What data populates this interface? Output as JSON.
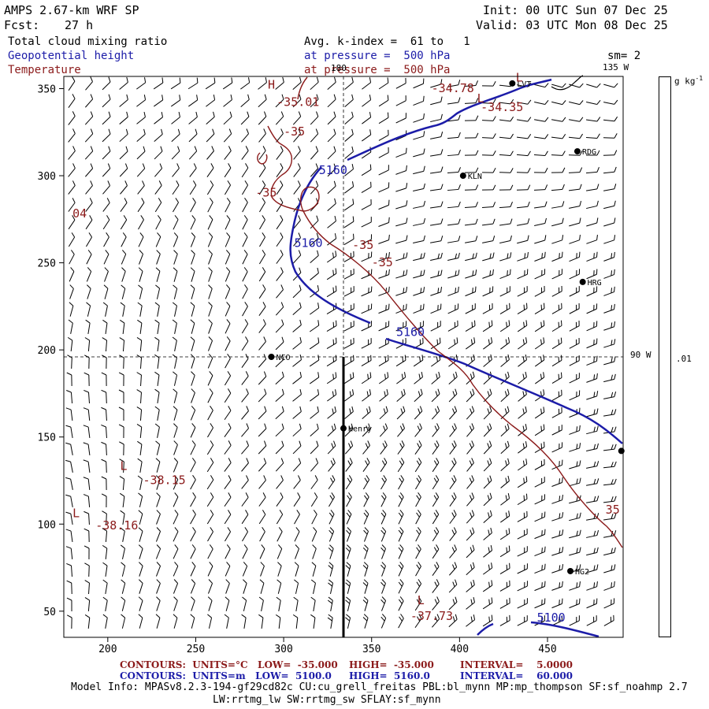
{
  "header": {
    "model_title": "AMPS 2.67-km WRF SP",
    "init": "Init: 00 UTC Sun 07 Dec 25",
    "fcst_label": "Fcst:",
    "fcst_value": "27 h",
    "valid": "Valid: 03 UTC Mon 08 Dec 25"
  },
  "fields": {
    "cloud": "Total cloud mixing ratio",
    "height": "Geopotential height",
    "temperature": "Temperature",
    "avg_line": "Avg. k-index =  61 to   1",
    "pressure_height": "at pressure =  500 hPa",
    "pressure_temp": "at pressure =  500 hPa",
    "smoothing": "sm= 2",
    "lon_135": "135 W",
    "lon_90": "90 W",
    "lon_180": "180"
  },
  "colorbar": {
    "units": "g kg",
    "units_sup": "-1",
    "tick_label": ".01"
  },
  "colors": {
    "height_contour": "#1c1ca8",
    "temperature_contour": "#8b1a1a",
    "barbs": "#000000"
  },
  "chart_data": {
    "type": "contour map",
    "x_ticks": [
      200,
      250,
      300,
      350,
      400,
      450
    ],
    "y_ticks": [
      50,
      100,
      150,
      200,
      250,
      300,
      350
    ],
    "xlim": [
      175,
      493
    ],
    "ylim": [
      35,
      357
    ],
    "stations": [
      {
        "name": "KLN",
        "x": 402,
        "y": 300
      },
      {
        "name": "RDG",
        "x": 467,
        "y": 314
      },
      {
        "name": "HRG",
        "x": 470,
        "y": 239
      },
      {
        "name": "NCO",
        "x": 293,
        "y": 196
      },
      {
        "name": "Henry",
        "x": 334,
        "y": 155
      },
      {
        "name": "HG2",
        "x": 463,
        "y": 73
      },
      {
        "name": "LVT",
        "x": 430,
        "y": 353
      },
      {
        "name": "",
        "x": 492,
        "y": 142
      }
    ],
    "height_contour_labels": [
      {
        "text": "5160",
        "x": 320,
        "y": 301
      },
      {
        "text": "5160",
        "x": 306,
        "y": 259
      },
      {
        "text": "5160",
        "x": 364,
        "y": 208
      },
      {
        "text": "5100",
        "x": 444,
        "y": 44
      }
    ],
    "temperature_labels": [
      {
        "text": "-35.01",
        "x": 296,
        "y": 340
      },
      {
        "text": "-34.78",
        "x": 384,
        "y": 348
      },
      {
        "text": "-34.35",
        "x": 412,
        "y": 337
      },
      {
        "text": "-35",
        "x": 300,
        "y": 323
      },
      {
        "text": "-35",
        "x": 284,
        "y": 288
      },
      {
        "text": "-35",
        "x": 339,
        "y": 258
      },
      {
        "text": "-35",
        "x": 350,
        "y": 248
      },
      {
        "text": "-38.15",
        "x": 220,
        "y": 123
      },
      {
        "text": "-38.16",
        "x": 193,
        "y": 97
      },
      {
        "text": "-37.73",
        "x": 372,
        "y": 45
      },
      {
        "text": "35",
        "x": 483,
        "y": 106
      },
      {
        "text": "04",
        "x": 180,
        "y": 276
      }
    ],
    "extrema_markers": [
      {
        "text": "H",
        "x": 291,
        "y": 350
      },
      {
        "text": "L",
        "x": 207,
        "y": 131
      },
      {
        "text": "L",
        "x": 180,
        "y": 104
      },
      {
        "text": "L",
        "x": 376,
        "y": 54
      },
      {
        "text": "L",
        "x": 432,
        "y": 354
      },
      {
        "text": "L",
        "x": 410,
        "y": 342
      }
    ],
    "cross_section": {
      "x": 334,
      "y_from": 35,
      "y_to": 196
    }
  },
  "footer": {
    "red_contours": "CONTOURS:  UNITS=°C   LOW=  -35.000",
    "red_high": "HIGH=  -35.000",
    "red_interval": "INTERVAL=    5.0000",
    "blue_contours": "CONTOURS:  UNITS=m   LOW=  5100.0",
    "blue_high": "HIGH=  5160.0",
    "blue_interval": "INTERVAL=    60.000",
    "model_info_1": "Model Info: MPASv8.2.3-194-gf29cd82c CU:cu_grell_freitas PBL:bl_mynn MP:mp_thompson SF:sf_noahmp 2.7",
    "model_info_2": "LW:rrtmg_lw SW:rrtmg_sw SFLAY:sf_mynn"
  }
}
